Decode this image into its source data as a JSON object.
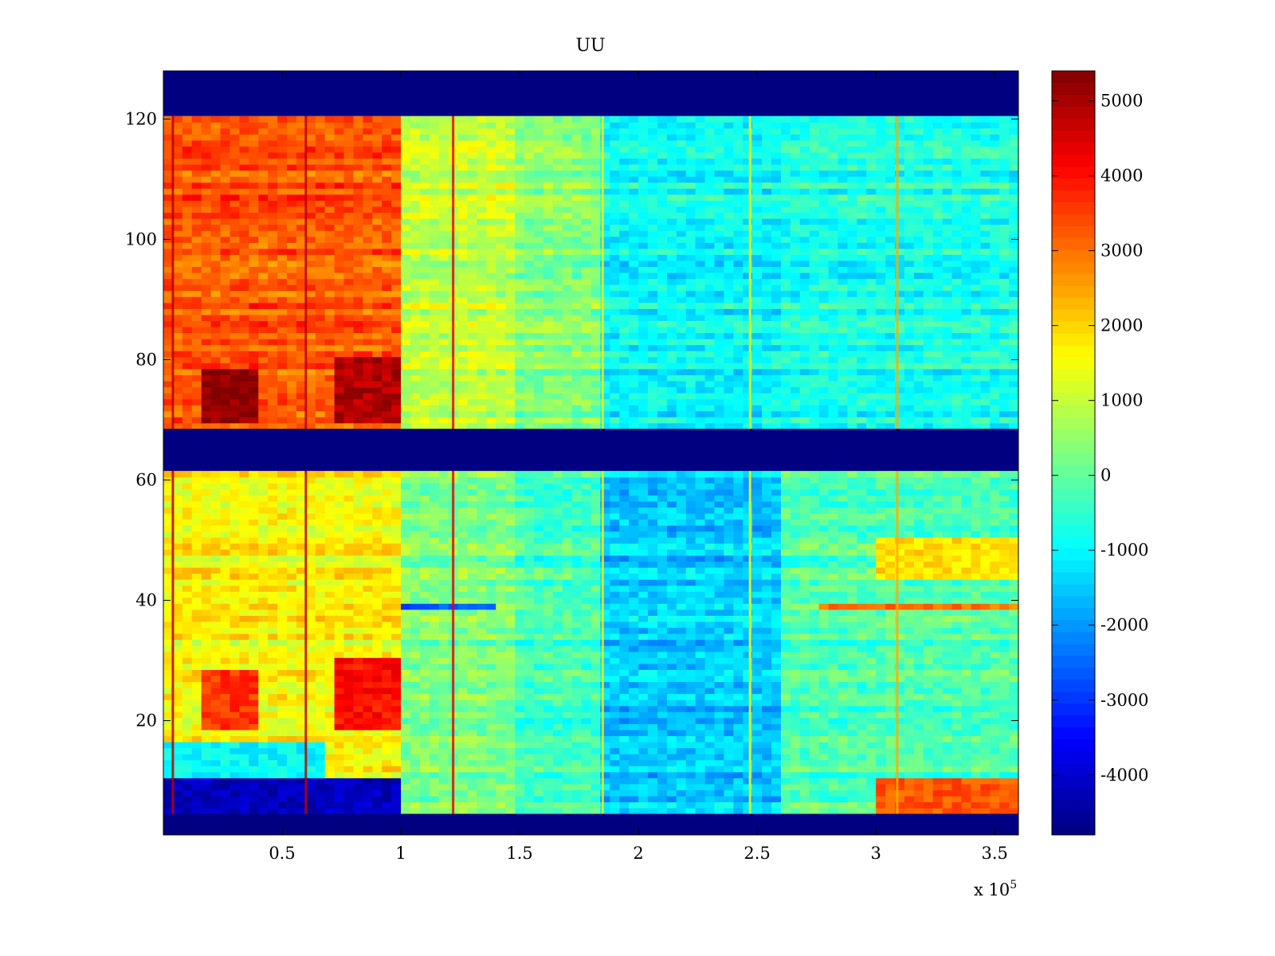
{
  "chart_data": {
    "type": "heatmap",
    "title": "UU",
    "xlabel": "",
    "ylabel": "",
    "x_exponent_label": "x 10",
    "x_exponent_power": "5",
    "xlim": [
      0,
      3.6
    ],
    "ylim": [
      1,
      128
    ],
    "x_ticks": [
      {
        "value": 0.5,
        "label": "0.5"
      },
      {
        "value": 1,
        "label": "1"
      },
      {
        "value": 1.5,
        "label": "1.5"
      },
      {
        "value": 2,
        "label": "2"
      },
      {
        "value": 2.5,
        "label": "2.5"
      },
      {
        "value": 3,
        "label": "3"
      },
      {
        "value": 3.5,
        "label": "3.5"
      }
    ],
    "y_ticks": [
      {
        "value": 20,
        "label": "20"
      },
      {
        "value": 40,
        "label": "40"
      },
      {
        "value": 60,
        "label": "60"
      },
      {
        "value": 80,
        "label": "80"
      },
      {
        "value": 100,
        "label": "100"
      },
      {
        "value": 120,
        "label": "120"
      }
    ],
    "colorbar": {
      "colormap": "jet",
      "clim": [
        -4800,
        5400
      ],
      "ticks": [
        {
          "value": 5000,
          "label": "5000"
        },
        {
          "value": 4000,
          "label": "4000"
        },
        {
          "value": 3000,
          "label": "3000"
        },
        {
          "value": 2000,
          "label": "2000"
        },
        {
          "value": 1000,
          "label": "1000"
        },
        {
          "value": 0,
          "label": "0"
        },
        {
          "value": -1000,
          "label": "-1000"
        },
        {
          "value": -2000,
          "label": "-2000"
        },
        {
          "value": -3000,
          "label": "-3000"
        },
        {
          "value": -4000,
          "label": "-4000"
        }
      ]
    },
    "masked_bands_y": [
      [
        1,
        4
      ],
      [
        62,
        68
      ],
      [
        121,
        128
      ]
    ],
    "time_segments_x": [
      {
        "x": [
          0,
          1.0
        ],
        "level_upper": 3300,
        "level_lower": 1600
      },
      {
        "x": [
          1.0,
          1.5
        ],
        "level_upper": 1000,
        "level_lower": 300
      },
      {
        "x": [
          1.5,
          1.85
        ],
        "level_upper": 400,
        "level_lower": -300
      },
      {
        "x": [
          1.85,
          2.6
        ],
        "level_upper": -900,
        "level_lower": -1500
      },
      {
        "x": [
          2.6,
          3.6
        ],
        "level_upper": -700,
        "level_lower": -200
      }
    ],
    "spike_columns_x": [
      {
        "x": 0.04,
        "value": 4800
      },
      {
        "x": 0.6,
        "value": 4800
      },
      {
        "x": 1.22,
        "value": 4300
      },
      {
        "x": 1.85,
        "value": 1800
      },
      {
        "x": 2.47,
        "value": 1600
      },
      {
        "x": 3.09,
        "value": 2400
      }
    ],
    "row_features": [
      {
        "y": [
          70,
          78
        ],
        "x": [
          0.17,
          0.4
        ],
        "value": 5300
      },
      {
        "y": [
          70,
          80
        ],
        "x": [
          0.72,
          1.0
        ],
        "value": 4900
      },
      {
        "y": [
          19,
          28
        ],
        "x": [
          0.17,
          0.4
        ],
        "value": 3600
      },
      {
        "y": [
          19,
          30
        ],
        "x": [
          0.72,
          1.0
        ],
        "value": 4000
      },
      {
        "y": [
          39,
          39
        ],
        "x": [
          1.0,
          1.4
        ],
        "value": -2600
      },
      {
        "y": [
          39,
          39
        ],
        "x": [
          2.75,
          3.6
        ],
        "value": 3000
      },
      {
        "y": [
          4,
          10
        ],
        "x": [
          0,
          1.0
        ],
        "value": -4200
      },
      {
        "y": [
          4,
          10
        ],
        "x": [
          3.0,
          3.6
        ],
        "value": 3300
      },
      {
        "y": [
          44,
          50
        ],
        "x": [
          3.0,
          3.6
        ],
        "value": 1900
      },
      {
        "y": [
          11,
          16
        ],
        "x": [
          0,
          0.7
        ],
        "value": -1000
      }
    ]
  }
}
